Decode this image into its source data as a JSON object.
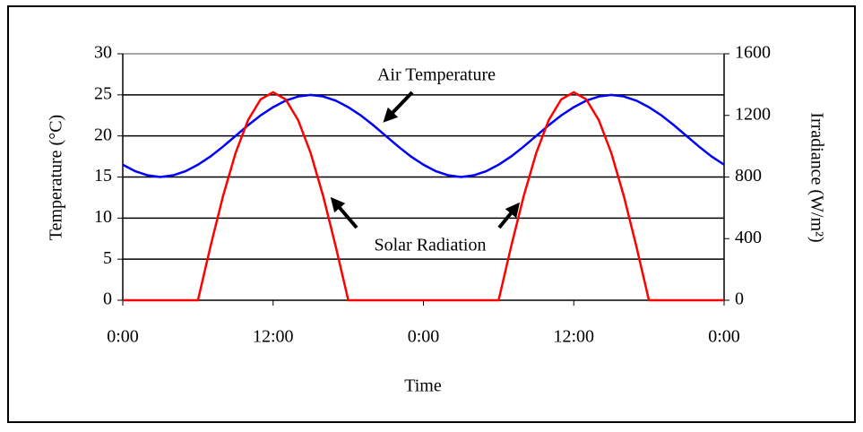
{
  "chart_data": {
    "type": "line",
    "xlabel": "Time",
    "ylabel": "Temperature (°C)",
    "y2label": "Irradiance (W/m²)",
    "x": [
      0,
      1,
      2,
      3,
      4,
      5,
      6,
      7,
      8,
      9,
      10,
      11,
      12,
      13,
      14,
      15,
      16,
      17,
      18,
      19,
      20,
      21,
      22,
      23,
      24,
      25,
      26,
      27,
      28,
      29,
      30,
      31,
      32,
      33,
      34,
      35,
      36,
      37,
      38,
      39,
      40,
      41,
      42,
      43,
      44,
      45,
      46,
      47,
      48
    ],
    "series": [
      {
        "name": "Air Temperature",
        "color": "#0000ff",
        "axis": "y",
        "values": [
          16.5,
          15.7,
          15.2,
          15,
          15.2,
          15.7,
          16.5,
          17.5,
          18.7,
          20,
          21.3,
          22.5,
          23.5,
          24.3,
          24.8,
          25,
          24.8,
          24.3,
          23.5,
          22.5,
          21.3,
          20,
          18.7,
          17.5,
          16.5,
          15.7,
          15.2,
          15,
          15.2,
          15.7,
          16.5,
          17.5,
          18.7,
          20,
          21.3,
          22.5,
          23.5,
          24.3,
          24.8,
          25,
          24.8,
          24.3,
          23.5,
          22.5,
          21.3,
          20,
          18.7,
          17.5,
          16.5
        ]
      },
      {
        "name": "Solar Radiation",
        "color": "#ff0000",
        "axis": "y2",
        "values": [
          0,
          0,
          0,
          0,
          0,
          0,
          0,
          349,
          675,
          955,
          1169,
          1304,
          1350,
          1304,
          1169,
          955,
          675,
          349,
          0,
          0,
          0,
          0,
          0,
          0,
          0,
          0,
          0,
          0,
          0,
          0,
          0,
          349,
          675,
          955,
          1169,
          1304,
          1350,
          1304,
          1169,
          955,
          675,
          349,
          0,
          0,
          0,
          0,
          0,
          0,
          0
        ]
      }
    ],
    "xlim": [
      0,
      48
    ],
    "xticks": [
      {
        "value": 0,
        "label": "0:00"
      },
      {
        "value": 12,
        "label": "12:00"
      },
      {
        "value": 24,
        "label": "0:00"
      },
      {
        "value": 36,
        "label": "12:00"
      },
      {
        "value": 48,
        "label": "0:00"
      }
    ],
    "ylim": [
      0,
      30
    ],
    "yticks": [
      0,
      5,
      10,
      15,
      20,
      25,
      30
    ],
    "y2lim": [
      0,
      1600
    ],
    "y2ticks": [
      0,
      400,
      800,
      1200,
      1600
    ],
    "grid": true
  }
}
